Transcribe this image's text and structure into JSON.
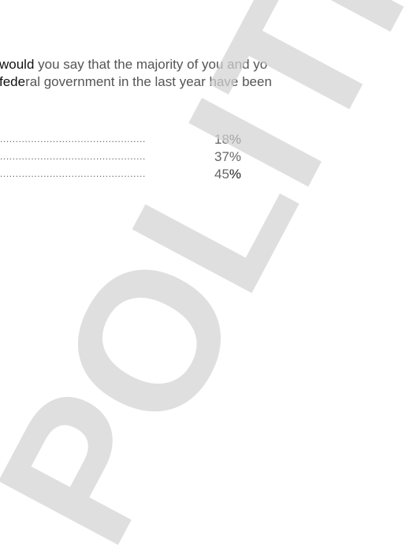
{
  "question": {
    "line1": {
      "dark": "would",
      "rest_a": " you say that the majority of you and yo",
      "rest_b": ""
    },
    "line2": {
      "dark": "fede",
      "rest": "ral government in the last year have been"
    },
    "full_line1": "would you say that the majority of you and yo",
    "full_line2": "federal government in the last year have been"
  },
  "answers": [
    {
      "leader": "...............................................",
      "pct_light": "18",
      "pct_dark": "%"
    },
    {
      "leader": "...............................................",
      "pct_light": "37%",
      "pct_dark": ""
    },
    {
      "leader": "...............................................",
      "pct_light": "45",
      "pct_dark": "%"
    }
  ],
  "watermark": {
    "text": "POLITICO"
  }
}
